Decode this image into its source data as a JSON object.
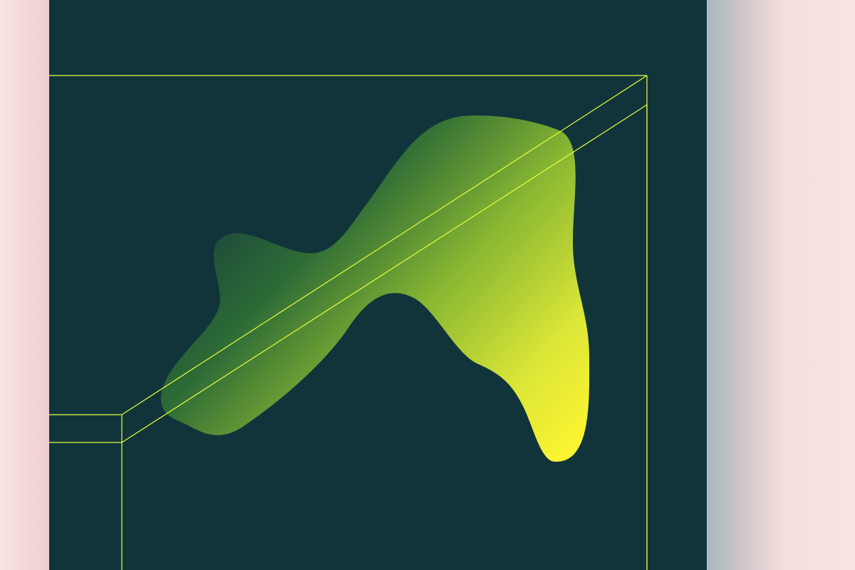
{
  "artwork": {
    "colors": {
      "page_background": "#fbe4e4",
      "panel_background": "#11343b",
      "line_color": "#e6ff3a",
      "blob_gradient_start": "#1e4a3a",
      "blob_gradient_mid": "#8ab832",
      "blob_gradient_end": "#fff530"
    },
    "elements": {
      "blob": "organic-blob-shape",
      "frame": "wireframe-box-outline"
    }
  }
}
